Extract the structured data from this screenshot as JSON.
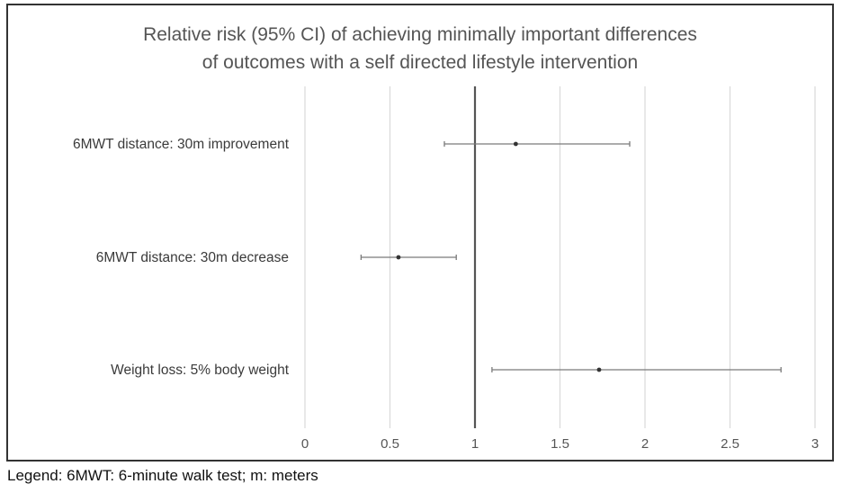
{
  "chart_data": {
    "type": "forest",
    "title_lines": [
      "Relative risk (95% CI) of achieving minimally important differences",
      "of outcomes with a self directed lifestyle intervention"
    ],
    "categories": [
      "6MWT distance: 30m improvement",
      "6MWT distance: 30m decrease",
      "Weight loss: 5% body weight"
    ],
    "estimates": [
      1.24,
      0.55,
      1.73
    ],
    "ci_lower": [
      0.82,
      0.33,
      1.1
    ],
    "ci_upper": [
      1.91,
      0.89,
      2.8
    ],
    "xlim": [
      0,
      3
    ],
    "xticks": [
      0,
      0.5,
      1,
      1.5,
      2,
      2.5,
      3
    ],
    "xtick_labels": [
      "0",
      "0.5",
      "1",
      "1.5",
      "2",
      "2.5",
      "3"
    ],
    "reference_line": 1,
    "grid": true
  },
  "legend_text": "Legend: 6MWT: 6-minute walk test; m: meters",
  "colors": {
    "gridline": "#d9d9d9",
    "reference_line": "#555555",
    "ci_line": "#7a7a7a",
    "point": "#333333"
  }
}
